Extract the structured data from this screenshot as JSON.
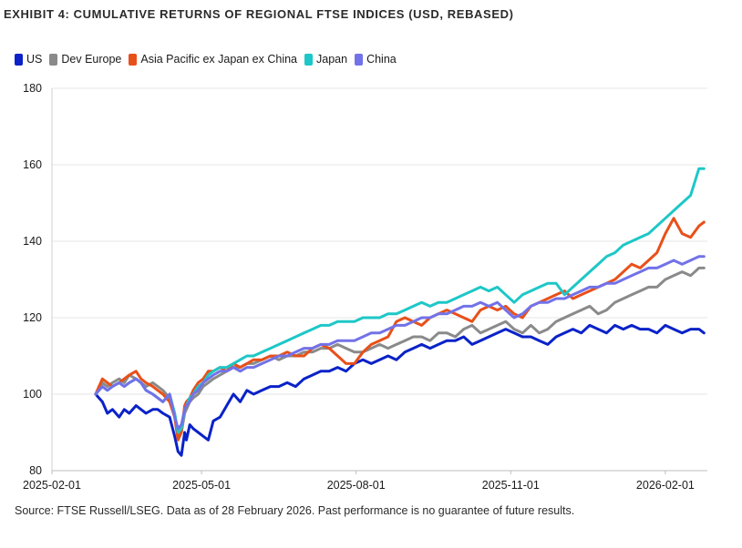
{
  "title": "EXHIBIT 4:  CUMULATIVE RETURNS OF REGIONAL FTSE INDICES (USD, REBASED)",
  "source": "Source: FTSE Russell/LSEG. Data as of 28 February 2026. Past performance is no guarantee of future results.",
  "chart_data": {
    "type": "line",
    "title": "CUMULATIVE RETURNS OF REGIONAL FTSE INDICES (USD, REBASED)",
    "xlabel": "",
    "ylabel": "",
    "ylim": [
      80,
      180
    ],
    "yticks": [
      80,
      100,
      120,
      140,
      160,
      180
    ],
    "xlim": [
      0,
      390
    ],
    "xticks": [
      {
        "label": "2025-02-01",
        "day": 0
      },
      {
        "label": "2025-05-01",
        "day": 89
      },
      {
        "label": "2025-08-01",
        "day": 181
      },
      {
        "label": "2025-11-01",
        "day": 273
      },
      {
        "label": "2026-02-01",
        "day": 365
      }
    ],
    "legend_position": "top-left",
    "series": [
      {
        "name": "US",
        "color": "#0a22c8",
        "x": [
          26,
          28,
          30,
          33,
          36,
          40,
          43,
          46,
          50,
          53,
          56,
          60,
          63,
          66,
          70,
          73,
          75,
          77,
          79,
          80,
          82,
          84,
          87,
          90,
          93,
          96,
          100,
          104,
          108,
          112,
          116,
          120,
          125,
          130,
          135,
          140,
          145,
          150,
          155,
          160,
          165,
          170,
          175,
          180,
          185,
          190,
          195,
          200,
          205,
          210,
          215,
          220,
          225,
          230,
          235,
          240,
          245,
          250,
          255,
          260,
          265,
          270,
          275,
          280,
          285,
          290,
          295,
          300,
          305,
          310,
          315,
          320,
          325,
          330,
          335,
          340,
          345,
          350,
          355,
          360,
          365,
          370,
          375,
          380,
          385,
          388
        ],
        "y": [
          100,
          99,
          98,
          95,
          96,
          94,
          96,
          95,
          97,
          96,
          95,
          96,
          96,
          95,
          94,
          89,
          85,
          84,
          90,
          88,
          92,
          91,
          90,
          89,
          88,
          93,
          94,
          97,
          100,
          98,
          101,
          100,
          101,
          102,
          102,
          103,
          102,
          104,
          105,
          106,
          106,
          107,
          106,
          108,
          109,
          108,
          109,
          110,
          109,
          111,
          112,
          113,
          112,
          113,
          114,
          114,
          115,
          113,
          114,
          115,
          116,
          117,
          116,
          115,
          115,
          114,
          113,
          115,
          116,
          117,
          116,
          118,
          117,
          116,
          118,
          117,
          118,
          117,
          117,
          116,
          118,
          117,
          116,
          117,
          117,
          116
        ]
      },
      {
        "name": "Dev Europe",
        "color": "#8a8a8a",
        "x": [
          26,
          28,
          30,
          33,
          36,
          40,
          43,
          46,
          50,
          53,
          56,
          60,
          63,
          66,
          70,
          73,
          75,
          77,
          79,
          80,
          82,
          84,
          87,
          90,
          93,
          96,
          100,
          104,
          108,
          112,
          116,
          120,
          125,
          130,
          135,
          140,
          145,
          150,
          155,
          160,
          165,
          170,
          175,
          180,
          185,
          190,
          195,
          200,
          205,
          210,
          215,
          220,
          225,
          230,
          235,
          240,
          245,
          250,
          255,
          260,
          265,
          270,
          275,
          280,
          285,
          290,
          295,
          300,
          305,
          310,
          315,
          320,
          325,
          330,
          335,
          340,
          345,
          350,
          355,
          360,
          365,
          370,
          375,
          380,
          385,
          388
        ],
        "y": [
          100,
          101,
          103,
          102,
          103,
          104,
          103,
          105,
          104,
          103,
          102,
          103,
          102,
          101,
          99,
          95,
          89,
          90,
          95,
          96,
          98,
          99,
          100,
          102,
          103,
          104,
          105,
          106,
          107,
          107,
          108,
          108,
          109,
          110,
          109,
          110,
          110,
          111,
          111,
          112,
          112,
          113,
          112,
          111,
          111,
          112,
          113,
          112,
          113,
          114,
          115,
          115,
          114,
          116,
          116,
          115,
          117,
          118,
          116,
          117,
          118,
          119,
          117,
          116,
          118,
          116,
          117,
          119,
          120,
          121,
          122,
          123,
          121,
          122,
          124,
          125,
          126,
          127,
          128,
          128,
          130,
          131,
          132,
          131,
          133,
          133
        ]
      },
      {
        "name": "Asia Pacific ex Japan ex China",
        "color": "#e8501a",
        "x": [
          26,
          28,
          30,
          33,
          36,
          40,
          43,
          46,
          50,
          53,
          56,
          60,
          63,
          66,
          70,
          73,
          75,
          77,
          79,
          80,
          82,
          84,
          87,
          90,
          93,
          96,
          100,
          104,
          108,
          112,
          116,
          120,
          125,
          130,
          135,
          140,
          145,
          150,
          155,
          160,
          165,
          170,
          175,
          180,
          185,
          190,
          195,
          200,
          205,
          210,
          215,
          220,
          225,
          230,
          235,
          240,
          245,
          250,
          255,
          260,
          265,
          270,
          275,
          280,
          285,
          290,
          295,
          300,
          305,
          310,
          315,
          320,
          325,
          330,
          335,
          340,
          345,
          350,
          355,
          360,
          365,
          370,
          375,
          380,
          385,
          388
        ],
        "y": [
          100,
          102,
          104,
          103,
          102,
          103,
          104,
          105,
          106,
          104,
          103,
          102,
          101,
          100,
          98,
          94,
          88,
          90,
          97,
          98,
          99,
          101,
          103,
          104,
          106,
          106,
          107,
          106,
          108,
          107,
          108,
          109,
          109,
          110,
          110,
          111,
          110,
          110,
          112,
          113,
          112,
          110,
          108,
          108,
          111,
          113,
          114,
          115,
          119,
          120,
          119,
          118,
          120,
          121,
          122,
          121,
          120,
          119,
          122,
          123,
          122,
          123,
          121,
          120,
          123,
          124,
          125,
          126,
          127,
          125,
          126,
          127,
          128,
          129,
          130,
          132,
          134,
          133,
          135,
          137,
          142,
          146,
          142,
          141,
          144,
          145
        ]
      },
      {
        "name": "Japan",
        "color": "#1ec7c7",
        "x": [
          26,
          28,
          30,
          33,
          36,
          40,
          43,
          46,
          50,
          53,
          56,
          60,
          63,
          66,
          70,
          73,
          75,
          77,
          79,
          80,
          82,
          84,
          87,
          90,
          93,
          96,
          100,
          104,
          108,
          112,
          116,
          120,
          125,
          130,
          135,
          140,
          145,
          150,
          155,
          160,
          165,
          170,
          175,
          180,
          185,
          190,
          195,
          200,
          205,
          210,
          215,
          220,
          225,
          230,
          235,
          240,
          245,
          250,
          255,
          260,
          265,
          270,
          275,
          280,
          285,
          290,
          295,
          300,
          305,
          310,
          315,
          320,
          325,
          330,
          335,
          340,
          345,
          350,
          355,
          360,
          365,
          370,
          375,
          380,
          385,
          388
        ],
        "y": [
          100,
          101,
          102,
          101,
          102,
          103,
          102,
          103,
          104,
          103,
          101,
          100,
          99,
          98,
          100,
          95,
          90,
          91,
          96,
          97,
          99,
          100,
          102,
          103,
          105,
          106,
          107,
          107,
          108,
          109,
          110,
          110,
          111,
          112,
          113,
          114,
          115,
          116,
          117,
          118,
          118,
          119,
          119,
          119,
          120,
          120,
          120,
          121,
          121,
          122,
          123,
          124,
          123,
          124,
          124,
          125,
          126,
          127,
          128,
          127,
          128,
          126,
          124,
          126,
          127,
          128,
          129,
          129,
          126,
          128,
          130,
          132,
          134,
          136,
          137,
          139,
          140,
          141,
          142,
          144,
          146,
          148,
          150,
          152,
          159,
          159
        ]
      },
      {
        "name": "China",
        "color": "#7272e8",
        "x": [
          26,
          28,
          30,
          33,
          36,
          40,
          43,
          46,
          50,
          53,
          56,
          60,
          63,
          66,
          70,
          73,
          75,
          77,
          79,
          80,
          82,
          84,
          87,
          90,
          93,
          96,
          100,
          104,
          108,
          112,
          116,
          120,
          125,
          130,
          135,
          140,
          145,
          150,
          155,
          160,
          165,
          170,
          175,
          180,
          185,
          190,
          195,
          200,
          205,
          210,
          215,
          220,
          225,
          230,
          235,
          240,
          245,
          250,
          255,
          260,
          265,
          270,
          275,
          280,
          285,
          290,
          295,
          300,
          305,
          310,
          315,
          320,
          325,
          330,
          335,
          340,
          345,
          350,
          355,
          360,
          365,
          370,
          375,
          380,
          385,
          388
        ],
        "y": [
          100,
          101,
          102,
          101,
          102,
          103,
          102,
          103,
          104,
          103,
          101,
          100,
          99,
          98,
          100,
          94,
          91,
          92,
          96,
          97,
          98,
          100,
          101,
          103,
          104,
          105,
          106,
          106,
          107,
          106,
          107,
          107,
          108,
          109,
          110,
          110,
          111,
          112,
          112,
          113,
          113,
          114,
          114,
          114,
          115,
          116,
          116,
          117,
          118,
          118,
          119,
          120,
          120,
          121,
          121,
          122,
          123,
          123,
          124,
          123,
          124,
          122,
          120,
          121,
          123,
          124,
          124,
          125,
          125,
          126,
          127,
          128,
          128,
          129,
          129,
          130,
          131,
          132,
          133,
          133,
          134,
          135,
          134,
          135,
          136,
          136
        ]
      }
    ]
  }
}
